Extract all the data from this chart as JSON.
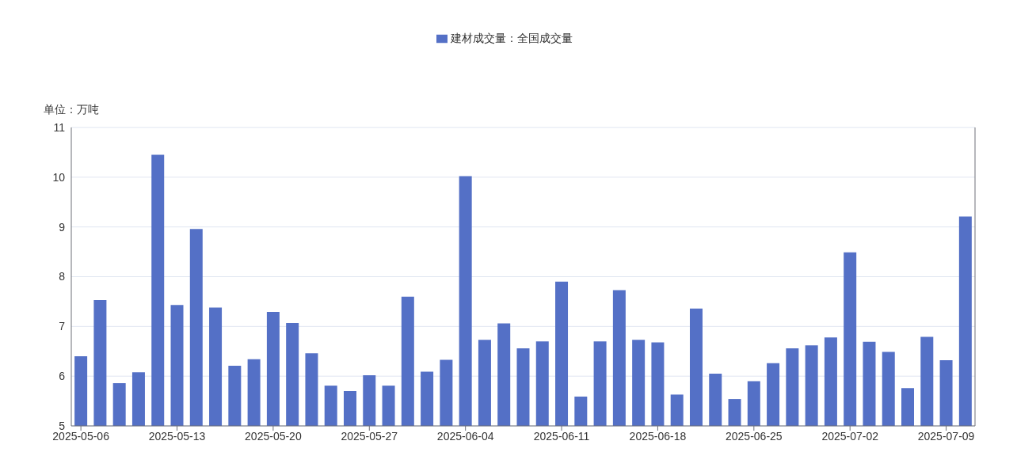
{
  "chart_data": {
    "type": "bar",
    "ylabel": "单位：万吨",
    "categories": [
      "2025-05-06",
      null,
      null,
      null,
      null,
      "2025-05-13",
      null,
      null,
      null,
      null,
      "2025-05-20",
      null,
      null,
      null,
      null,
      "2025-05-27",
      null,
      null,
      null,
      null,
      "2025-06-04",
      null,
      null,
      null,
      null,
      "2025-06-11",
      null,
      null,
      null,
      null,
      "2025-06-18",
      null,
      null,
      null,
      null,
      "2025-06-25",
      null,
      null,
      null,
      null,
      "2025-07-02",
      null,
      null,
      null,
      null,
      "2025-07-09",
      null
    ],
    "series": [
      {
        "name": "建材成交量：全国成交量",
        "color": "#5470c6",
        "values": [
          6.4,
          7.53,
          5.86,
          6.08,
          10.45,
          7.43,
          8.96,
          7.38,
          6.21,
          6.34,
          7.29,
          7.07,
          6.46,
          5.81,
          5.7,
          6.02,
          5.81,
          7.6,
          6.09,
          6.33,
          10.02,
          6.73,
          7.06,
          6.56,
          6.7,
          7.9,
          5.59,
          6.7,
          7.73,
          6.73,
          6.68,
          5.63,
          7.36,
          6.05,
          5.54,
          5.9,
          6.26,
          6.56,
          6.62,
          6.78,
          8.49,
          6.69,
          6.49,
          5.76,
          6.79,
          6.32,
          9.21
        ]
      }
    ],
    "ylim": [
      5,
      11
    ],
    "yticks": [
      5,
      6,
      7,
      8,
      9,
      10,
      11
    ],
    "grid": "y",
    "legend": "top"
  }
}
